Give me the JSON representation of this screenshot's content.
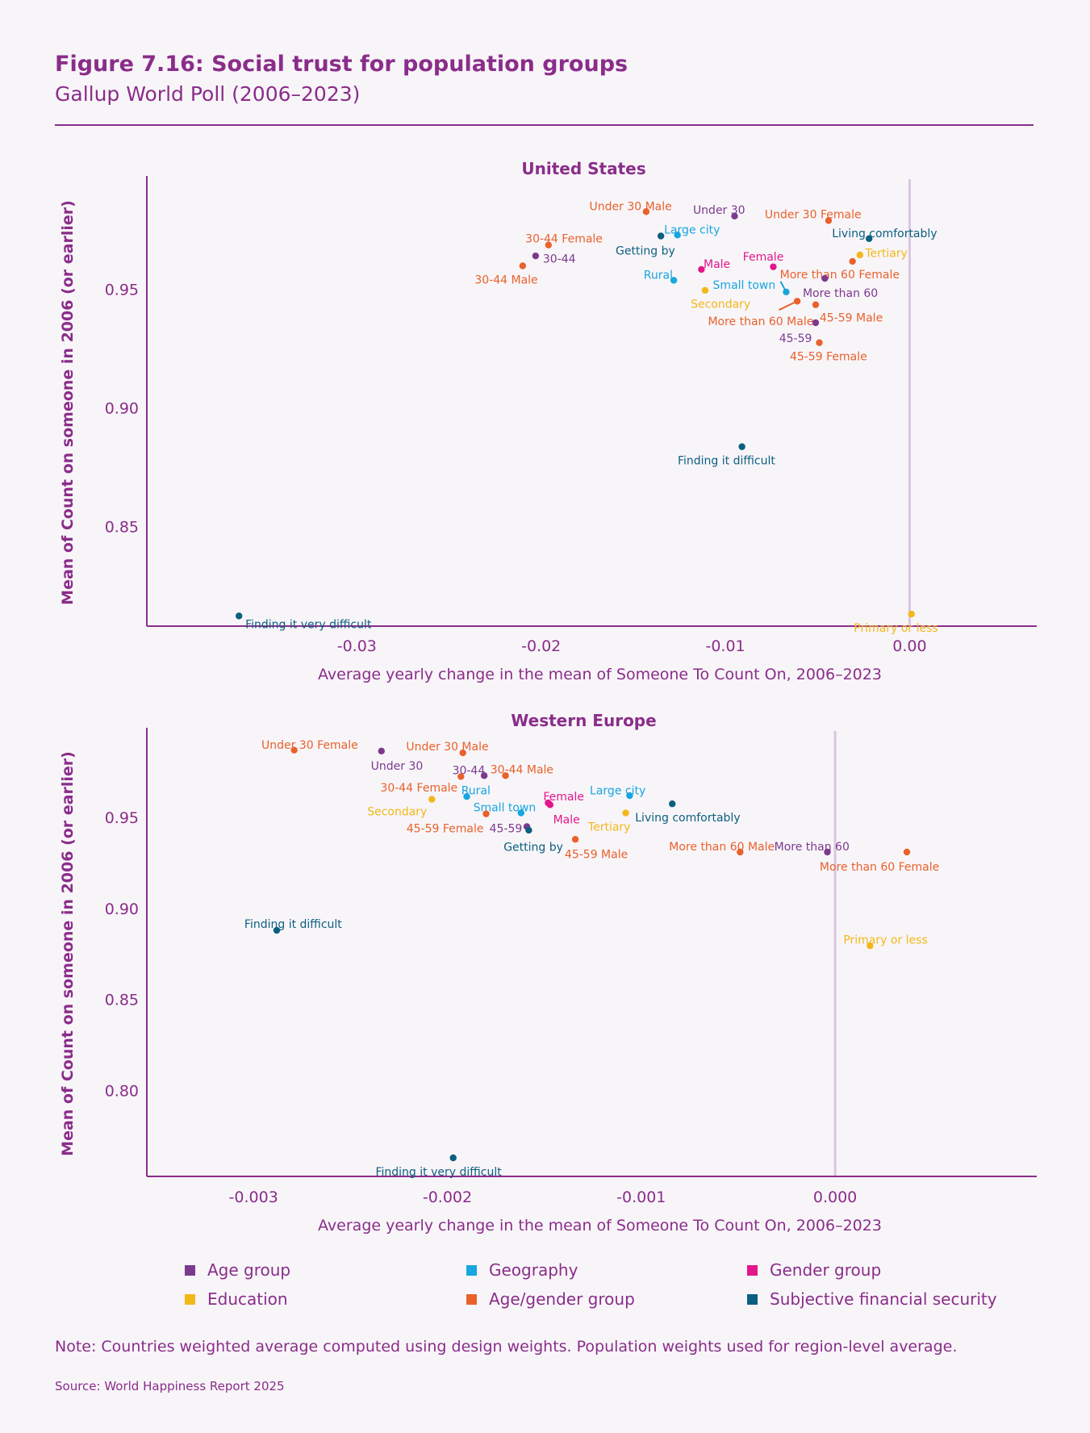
{
  "header": {
    "title": "Figure 7.16: Social trust for population groups",
    "subtitle": "Gallup World Poll (2006–2023)"
  },
  "groups": [
    {
      "name": "Age group",
      "color": "#7b3a8e"
    },
    {
      "name": "Geography",
      "color": "#17a6df"
    },
    {
      "name": "Gender group",
      "color": "#e3168b"
    },
    {
      "name": "Education",
      "color": "#f3b719"
    },
    {
      "name": "Age/gender group",
      "color": "#e9612b"
    },
    {
      "name": "Subjective financial security",
      "color": "#0b5f7f"
    }
  ],
  "chart_data": [
    {
      "type": "scatter",
      "title": "United States",
      "xlabel": "Average yearly change in the mean of Someone To Count On, 2006–2023",
      "ylabel": "Mean of Count on someone in 2006 (or earlier)",
      "xticks": [
        "-0.03",
        "-0.02",
        "-0.01",
        "0.00"
      ],
      "xtick_values": [
        -0.03,
        -0.02,
        -0.01,
        0.0
      ],
      "yticks": [
        "0.95",
        "0.90",
        "0.85"
      ],
      "ytick_values": [
        0.95,
        0.9,
        0.85
      ],
      "xlim": [
        -0.0414,
        0.0069
      ],
      "ylim": [
        0.8079,
        0.9965
      ],
      "reference_line_x": 0.0,
      "grid": false,
      "points": [
        {
          "label": "Under 30 Male",
          "group": "Age/gender group",
          "x": -0.0143,
          "y": 0.9828
        },
        {
          "label": "Under 30",
          "group": "Age group",
          "x": -0.0095,
          "y": 0.9809
        },
        {
          "label": "Under 30 Female",
          "group": "Age/gender group",
          "x": -0.0044,
          "y": 0.979
        },
        {
          "label": "Living comfortably",
          "group": "Subjective financial security",
          "x": -0.0022,
          "y": 0.9714
        },
        {
          "label": "Tertiary",
          "group": "Education",
          "x": -0.0027,
          "y": 0.9645
        },
        {
          "label": "More than 60 Female",
          "group": "Age/gender group",
          "x": -0.0031,
          "y": 0.9618
        },
        {
          "label": "Large city",
          "group": "Geography",
          "x": -0.0126,
          "y": 0.9729
        },
        {
          "label": "Getting by",
          "group": "Subjective financial security",
          "x": -0.0135,
          "y": 0.9725
        },
        {
          "label": "30-44 Female",
          "group": "Age/gender group",
          "x": -0.0196,
          "y": 0.9687
        },
        {
          "label": "30-44",
          "group": "Age group",
          "x": -0.0203,
          "y": 0.9641
        },
        {
          "label": "30-44 Male",
          "group": "Age/gender group",
          "x": -0.021,
          "y": 0.9599
        },
        {
          "label": "Male",
          "group": "Gender group",
          "x": -0.0113,
          "y": 0.9584
        },
        {
          "label": "Female",
          "group": "Gender group",
          "x": -0.0074,
          "y": 0.9595
        },
        {
          "label": "Rural",
          "group": "Geography",
          "x": -0.0128,
          "y": 0.9538
        },
        {
          "label": "More than 60",
          "group": "Age group",
          "x": -0.0046,
          "y": 0.9546
        },
        {
          "label": "Small town",
          "group": "Geography",
          "x": -0.0067,
          "y": 0.9489
        },
        {
          "label": "Secondary",
          "group": "Education",
          "x": -0.0111,
          "y": 0.9496
        },
        {
          "label": "More than 60 Male",
          "group": "Age/gender group",
          "x": -0.0061,
          "y": 0.945
        },
        {
          "label": "45-59 Male",
          "group": "Age/gender group",
          "x": -0.0051,
          "y": 0.9435
        },
        {
          "label": "45-59",
          "group": "Age group",
          "x": -0.0051,
          "y": 0.9359
        },
        {
          "label": "45-59 Female",
          "group": "Age/gender group",
          "x": -0.0049,
          "y": 0.9275
        },
        {
          "label": "Finding it difficult",
          "group": "Subjective financial security",
          "x": -0.0091,
          "y": 0.8836
        },
        {
          "label": "Finding it very difficult",
          "group": "Subjective financial security",
          "x": -0.0364,
          "y": 0.8122
        },
        {
          "label": "Primary or less",
          "group": "Education",
          "x": 0.0001,
          "y": 0.813
        }
      ]
    },
    {
      "type": "scatter",
      "title": "Western Europe",
      "xlabel": "Average yearly change in the mean of Someone To Count On, 2006–2023",
      "ylabel": "Mean of Count on someone in 2006 (or earlier)",
      "xticks": [
        "-0.003",
        "-0.002",
        "-0.001",
        "0.000"
      ],
      "xtick_values": [
        -0.003,
        -0.002,
        -0.001,
        0.0
      ],
      "yticks": [
        "0.95",
        "0.90",
        "0.85",
        "0.80"
      ],
      "ytick_values": [
        0.95,
        0.9,
        0.85,
        0.8
      ],
      "xlim": [
        -0.00355,
        0.00104
      ],
      "ylim": [
        0.7528,
        0.9975
      ],
      "reference_line_x": 0.0,
      "grid": false,
      "points": [
        {
          "label": "Under 30 Female",
          "group": "Age/gender group",
          "x": -0.00279,
          "y": 0.987
        },
        {
          "label": "Under 30",
          "group": "Age group",
          "x": -0.00234,
          "y": 0.9865
        },
        {
          "label": "Under 30 Male",
          "group": "Age/gender group",
          "x": -0.00192,
          "y": 0.9855
        },
        {
          "label": "30-44",
          "group": "Age group",
          "x": -0.00181,
          "y": 0.973
        },
        {
          "label": "30-44 Female",
          "group": "Age/gender group",
          "x": -0.00193,
          "y": 0.9725
        },
        {
          "label": "30-44 Male",
          "group": "Age/gender group",
          "x": -0.0017,
          "y": 0.973
        },
        {
          "label": "Rural",
          "group": "Geography",
          "x": -0.0019,
          "y": 0.9615
        },
        {
          "label": "Secondary",
          "group": "Education",
          "x": -0.00208,
          "y": 0.96
        },
        {
          "label": "Small town",
          "group": "Geography",
          "x": -0.00162,
          "y": 0.9525
        },
        {
          "label": "45-59 Female",
          "group": "Age/gender group",
          "x": -0.0018,
          "y": 0.952
        },
        {
          "label": "45-59",
          "group": "Age group",
          "x": -0.00159,
          "y": 0.945
        },
        {
          "label": "Getting by",
          "group": "Subjective financial security",
          "x": -0.00158,
          "y": 0.943
        },
        {
          "label": "Female",
          "group": "Gender group",
          "x": -0.00148,
          "y": 0.958
        },
        {
          "label": "Male",
          "group": "Gender group",
          "x": -0.00147,
          "y": 0.957
        },
        {
          "label": "Large city",
          "group": "Geography",
          "x": -0.00106,
          "y": 0.962
        },
        {
          "label": "Tertiary",
          "group": "Education",
          "x": -0.00108,
          "y": 0.9525
        },
        {
          "label": "Living comfortably",
          "group": "Subjective financial security",
          "x": -0.00084,
          "y": 0.9575
        },
        {
          "label": "45-59 Male",
          "group": "Age/gender group",
          "x": -0.00134,
          "y": 0.938
        },
        {
          "label": "More than 60 Male",
          "group": "Age/gender group",
          "x": -0.00049,
          "y": 0.931
        },
        {
          "label": "More than 60",
          "group": "Age group",
          "x": -4e-05,
          "y": 0.931
        },
        {
          "label": "More than 60 Female",
          "group": "Age/gender group",
          "x": 0.00037,
          "y": 0.931
        },
        {
          "label": "Finding it difficult",
          "group": "Subjective financial security",
          "x": -0.00288,
          "y": 0.888
        },
        {
          "label": "Primary or less",
          "group": "Education",
          "x": 0.00018,
          "y": 0.8795
        },
        {
          "label": "Finding it very difficult",
          "group": "Subjective financial security",
          "x": -0.00197,
          "y": 0.763
        }
      ]
    }
  ],
  "footer": {
    "note": "Note: Countries weighted average computed using design weights. Population weights used for region-level average.",
    "source": "Source: World Happiness Report 2025"
  }
}
